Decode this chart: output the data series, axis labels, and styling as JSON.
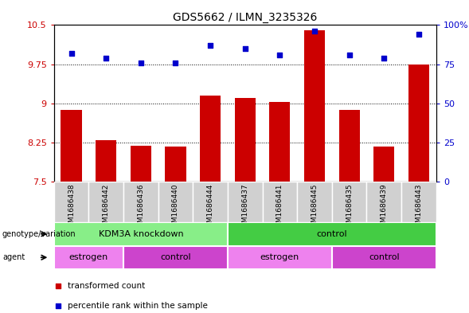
{
  "title": "GDS5662 / ILMN_3235326",
  "samples": [
    "GSM1686438",
    "GSM1686442",
    "GSM1686436",
    "GSM1686440",
    "GSM1686444",
    "GSM1686437",
    "GSM1686441",
    "GSM1686445",
    "GSM1686435",
    "GSM1686439",
    "GSM1686443"
  ],
  "transformed_count": [
    8.88,
    8.3,
    8.18,
    8.17,
    9.15,
    9.1,
    9.03,
    10.4,
    8.88,
    8.17,
    9.74
  ],
  "percentile_rank": [
    82,
    79,
    76,
    76,
    87,
    85,
    81,
    96,
    81,
    79,
    94
  ],
  "ylim_left": [
    7.5,
    10.5
  ],
  "ylim_right": [
    0,
    100
  ],
  "yticks_left": [
    7.5,
    8.25,
    9.0,
    9.75,
    10.5
  ],
  "yticks_left_labels": [
    "7.5",
    "8.25",
    "9",
    "9.75",
    "10.5"
  ],
  "yticks_right": [
    0,
    25,
    50,
    75,
    100
  ],
  "yticks_right_labels": [
    "0",
    "25",
    "50",
    "75",
    "100%"
  ],
  "bar_color": "#cc0000",
  "dot_color": "#0000cc",
  "sample_bg_color": "#d0d0d0",
  "genotype_groups": [
    {
      "label": "KDM3A knockdown",
      "start": 0,
      "end": 5,
      "color": "#88ee88"
    },
    {
      "label": "control",
      "start": 5,
      "end": 11,
      "color": "#44cc44"
    }
  ],
  "agent_groups": [
    {
      "label": "estrogen",
      "start": 0,
      "end": 2,
      "color": "#ee82ee"
    },
    {
      "label": "control",
      "start": 2,
      "end": 5,
      "color": "#cc44cc"
    },
    {
      "label": "estrogen",
      "start": 5,
      "end": 8,
      "color": "#ee82ee"
    },
    {
      "label": "control",
      "start": 8,
      "end": 11,
      "color": "#cc44cc"
    }
  ],
  "legend_items": [
    {
      "label": "transformed count",
      "color": "#cc0000"
    },
    {
      "label": "percentile rank within the sample",
      "color": "#0000cc"
    }
  ]
}
